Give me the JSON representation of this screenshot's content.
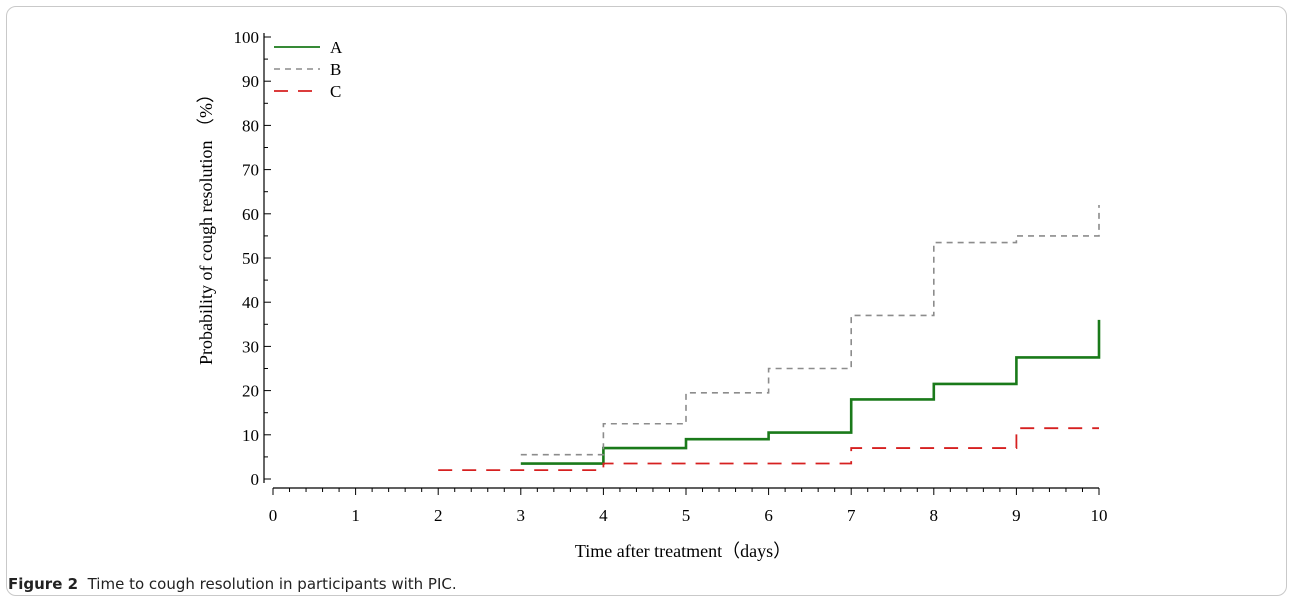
{
  "figure": {
    "label": "Figure 2",
    "caption": "Time to cough resolution in participants with PIC."
  },
  "chart_data": {
    "type": "line",
    "subtype": "step",
    "title": "",
    "xlabel": "Time after treatment（days）",
    "ylabel": "Probability of cough resolution （%）",
    "xlim": [
      0,
      10
    ],
    "ylim": [
      0,
      100
    ],
    "x_ticks": [
      0,
      1,
      2,
      3,
      4,
      5,
      6,
      7,
      8,
      9,
      10
    ],
    "y_ticks": [
      0,
      10,
      20,
      30,
      40,
      50,
      60,
      70,
      80,
      90,
      100
    ],
    "grid": false,
    "legend_position": "top-left",
    "series": [
      {
        "name": "A",
        "color": "#1a7a1a",
        "line_style": "solid",
        "x": [
          3,
          4,
          5,
          6,
          7,
          8,
          9,
          10
        ],
        "y": [
          3.5,
          7,
          9,
          10.5,
          18,
          21.5,
          27.5,
          36
        ]
      },
      {
        "name": "B",
        "color": "#8c8c8c",
        "line_style": "dashed",
        "x": [
          3,
          4,
          5,
          6,
          7,
          8,
          9,
          10
        ],
        "y": [
          5.5,
          12.5,
          19.5,
          25,
          37,
          53.5,
          55,
          62
        ]
      },
      {
        "name": "C",
        "color": "#d62020",
        "line_style": "long-dashed",
        "x": [
          2,
          4,
          7,
          9,
          10
        ],
        "y": [
          2,
          3.5,
          7,
          11.5,
          11.5
        ]
      }
    ]
  }
}
